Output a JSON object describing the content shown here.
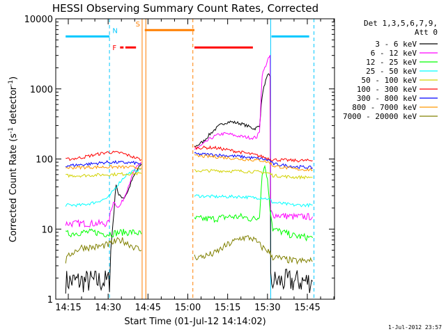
{
  "chart_data": {
    "type": "line",
    "title": "HESSI Observing Summary Count Rates, Corrected",
    "xlabel": "Start Time (01-Jul-12 14:14:02)",
    "ylabel": "Corrected Count Rate (s⁻¹ detector⁻¹)",
    "ylabel_main": "Corrected Count Rate (s",
    "ylabel_sup1": "-1",
    "ylabel_mid": " detector",
    "ylabel_sup2": "-1",
    "ylabel_end": ")",
    "yscale": "log",
    "ylim": [
      1,
      10000
    ],
    "xlim_minutes": [
      14.0,
      96.5
    ],
    "x_ticks": [
      {
        "m": 15,
        "label": "14:15"
      },
      {
        "m": 30,
        "label": "14:30"
      },
      {
        "m": 45,
        "label": "14:45"
      },
      {
        "m": 60,
        "label": "15:00"
      },
      {
        "m": 75,
        "label": "15:15"
      },
      {
        "m": 90,
        "label": "15:30"
      },
      {
        "m": 105,
        "label": "15:45"
      }
    ],
    "y_ticks": [
      {
        "v": 1,
        "label": "1"
      },
      {
        "v": 10,
        "label": "10"
      },
      {
        "v": 100,
        "label": "100"
      },
      {
        "v": 1000,
        "label": "1000"
      },
      {
        "v": 10000,
        "label": "10000"
      }
    ],
    "legend_header": [
      "Det 1,3,5,6,7,9,",
      "Att 0"
    ],
    "timestamp": "1-Jul-2012 23:57",
    "flags": [
      {
        "label": "N",
        "color": "#00c8ff",
        "level": 5600,
        "segments": [
          [
            14,
            30.5
          ],
          [
            91.5,
            105.7
          ]
        ]
      },
      {
        "label": "S",
        "color": "#ff7f00",
        "level": 6900,
        "segments": [
          [
            43.8,
            62.5
          ]
        ]
      },
      {
        "label": "F",
        "color": "#ff0000",
        "level": 3900,
        "segments": [
          [
            34.5,
            35.8
          ],
          [
            36.5,
            40.5
          ],
          [
            62.5,
            84.5
          ]
        ]
      }
    ],
    "vlines": [
      {
        "m": 30.5,
        "color": "#00c8ff",
        "dashed": true
      },
      {
        "m": 42.8,
        "color": "#ff7f00",
        "dashed": false
      },
      {
        "m": 44.2,
        "color": "#ff7f00",
        "dashed": false
      },
      {
        "m": 61.9,
        "color": "#ff7f00",
        "dashed": true
      },
      {
        "m": 91.2,
        "color": "#00c8ff",
        "dashed": false
      },
      {
        "m": 107.5,
        "color": "#00c8ff",
        "dashed": true
      }
    ],
    "series": [
      {
        "name": "3 - 6 keV",
        "color": "#000000",
        "segments": [
          {
            "x": [
              14.0,
              30.5,
              31.0,
              33.0,
              34.0,
              36.0,
              37.5,
              39.0,
              41.0,
              42.5
            ],
            "y": [
              1.8,
              1.8,
              5,
              45,
              30,
              28,
              35,
              50,
              70,
              85
            ]
          },
          {
            "x": [
              62.5,
              64,
              66,
              68,
              70,
              72,
              74,
              76,
              78,
              80,
              82,
              84,
              85,
              86,
              87,
              88,
              89,
              90.0,
              90.5,
              91.0,
              91.2,
              92,
              100,
              107
            ],
            "y": [
              150,
              160,
              180,
              220,
              260,
              300,
              330,
              340,
              330,
              320,
              300,
              280,
              270,
              280,
              300,
              800,
              1200,
              1500,
              1600,
              1550,
              1.8,
              1.8,
              1.8,
              1.8
            ]
          }
        ]
      },
      {
        "name": "6 - 12 keV",
        "color": "#ff00ff",
        "segments": [
          {
            "x": [
              14.0,
              20,
              25,
              30,
              32,
              34,
              36,
              38,
              40,
              42.5
            ],
            "y": [
              12,
              12,
              12,
              12,
              25,
              20,
              28,
              45,
              70,
              90
            ]
          },
          {
            "x": [
              62.5,
              64,
              66,
              68,
              70,
              72,
              74,
              76,
              78,
              80,
              82,
              84,
              86,
              87,
              88,
              89,
              90,
              91.0,
              91.2,
              92,
              100,
              107
            ],
            "y": [
              140,
              145,
              165,
              190,
              210,
              225,
              230,
              225,
              215,
              210,
              205,
              200,
              205,
              250,
              1600,
              2000,
              2500,
              3000,
              18,
              16,
              15,
              15
            ]
          }
        ]
      },
      {
        "name": "12 - 25 keV",
        "color": "#00ff00",
        "segments": [
          {
            "x": [
              14.0,
              20,
              25,
              30,
              35,
              40,
              42.5
            ],
            "y": [
              8.5,
              9,
              9,
              8.5,
              9,
              9,
              8.5
            ]
          },
          {
            "x": [
              62.5,
              70,
              75,
              80,
              84,
              86,
              87,
              88,
              89,
              90,
              91,
              92,
              100,
              107
            ],
            "y": [
              14,
              14,
              15,
              15,
              14,
              14,
              16,
              60,
              80,
              50,
              20,
              10,
              8,
              7.5
            ]
          }
        ]
      },
      {
        "name": "25 - 50 keV",
        "color": "#00ffff",
        "segments": [
          {
            "x": [
              14.0,
              20,
              25,
              30,
              33,
              35,
              37,
              40,
              42.5
            ],
            "y": [
              22,
              22,
              24,
              28,
              40,
              50,
              60,
              68,
              72
            ]
          },
          {
            "x": [
              62.5,
              70,
              75,
              80,
              85,
              88,
              90,
              91,
              92,
              100,
              107
            ],
            "y": [
              30,
              29,
              29,
              29,
              28,
              28,
              27,
              26,
              24,
              22,
              22
            ]
          }
        ]
      },
      {
        "name": "50 - 100 keV",
        "color": "#d2d200",
        "segments": [
          {
            "x": [
              14.0,
              20,
              30,
              40,
              42.5
            ],
            "y": [
              58,
              58,
              60,
              62,
              62
            ]
          },
          {
            "x": [
              62.5,
              70,
              80,
              88,
              91,
              92,
              100,
              107
            ],
            "y": [
              68,
              68,
              67,
              65,
              62,
              58,
              55,
              55
            ]
          }
        ]
      },
      {
        "name": "100 - 300 keV",
        "color": "#ff0000",
        "segments": [
          {
            "x": [
              14.0,
              20,
              25,
              30,
              35,
              40,
              42.5
            ],
            "y": [
              98,
              105,
              115,
              125,
              122,
              105,
              98
            ]
          },
          {
            "x": [
              62.5,
              70,
              75,
              80,
              85,
              88,
              91,
              92,
              100,
              107
            ],
            "y": [
              145,
              145,
              135,
              125,
              115,
              108,
              100,
              98,
              95,
              95
            ]
          }
        ]
      },
      {
        "name": "300 - 800 keV",
        "color": "#0000ff",
        "segments": [
          {
            "x": [
              14.0,
              20,
              30,
              40,
              42.5
            ],
            "y": [
              80,
              83,
              90,
              88,
              85
            ]
          },
          {
            "x": [
              62.5,
              70,
              80,
              88,
              91,
              92,
              100,
              107
            ],
            "y": [
              118,
              115,
              108,
              100,
              95,
              85,
              78,
              75
            ]
          }
        ]
      },
      {
        "name": "800 - 7000 keV",
        "color": "#ff9900",
        "segments": [
          {
            "x": [
              14.0,
              20,
              30,
              40,
              42.5
            ],
            "y": [
              75,
              76,
              77,
              76,
              75
            ]
          },
          {
            "x": [
              62.5,
              70,
              80,
              88,
              91,
              92,
              100,
              107
            ],
            "y": [
              110,
              108,
              100,
              95,
              88,
              80,
              72,
              70
            ]
          }
        ]
      },
      {
        "name": "7000 - 20000 keV",
        "color": "#808000",
        "segments": [
          {
            "x": [
              14.0,
              16,
              20,
              25,
              30,
              32,
              35,
              40,
              42.5
            ],
            "y": [
              3.5,
              4.5,
              5.5,
              5.5,
              6,
              6.5,
              7,
              5.5,
              5
            ]
          },
          {
            "x": [
              62.5,
              65,
              70,
              75,
              80,
              84,
              86,
              88,
              90,
              91,
              92,
              100,
              107
            ],
            "y": [
              4,
              4,
              4.5,
              6,
              7.5,
              7.5,
              6.5,
              5.5,
              5,
              4.5,
              4,
              3.5,
              3.5
            ]
          }
        ]
      }
    ]
  }
}
